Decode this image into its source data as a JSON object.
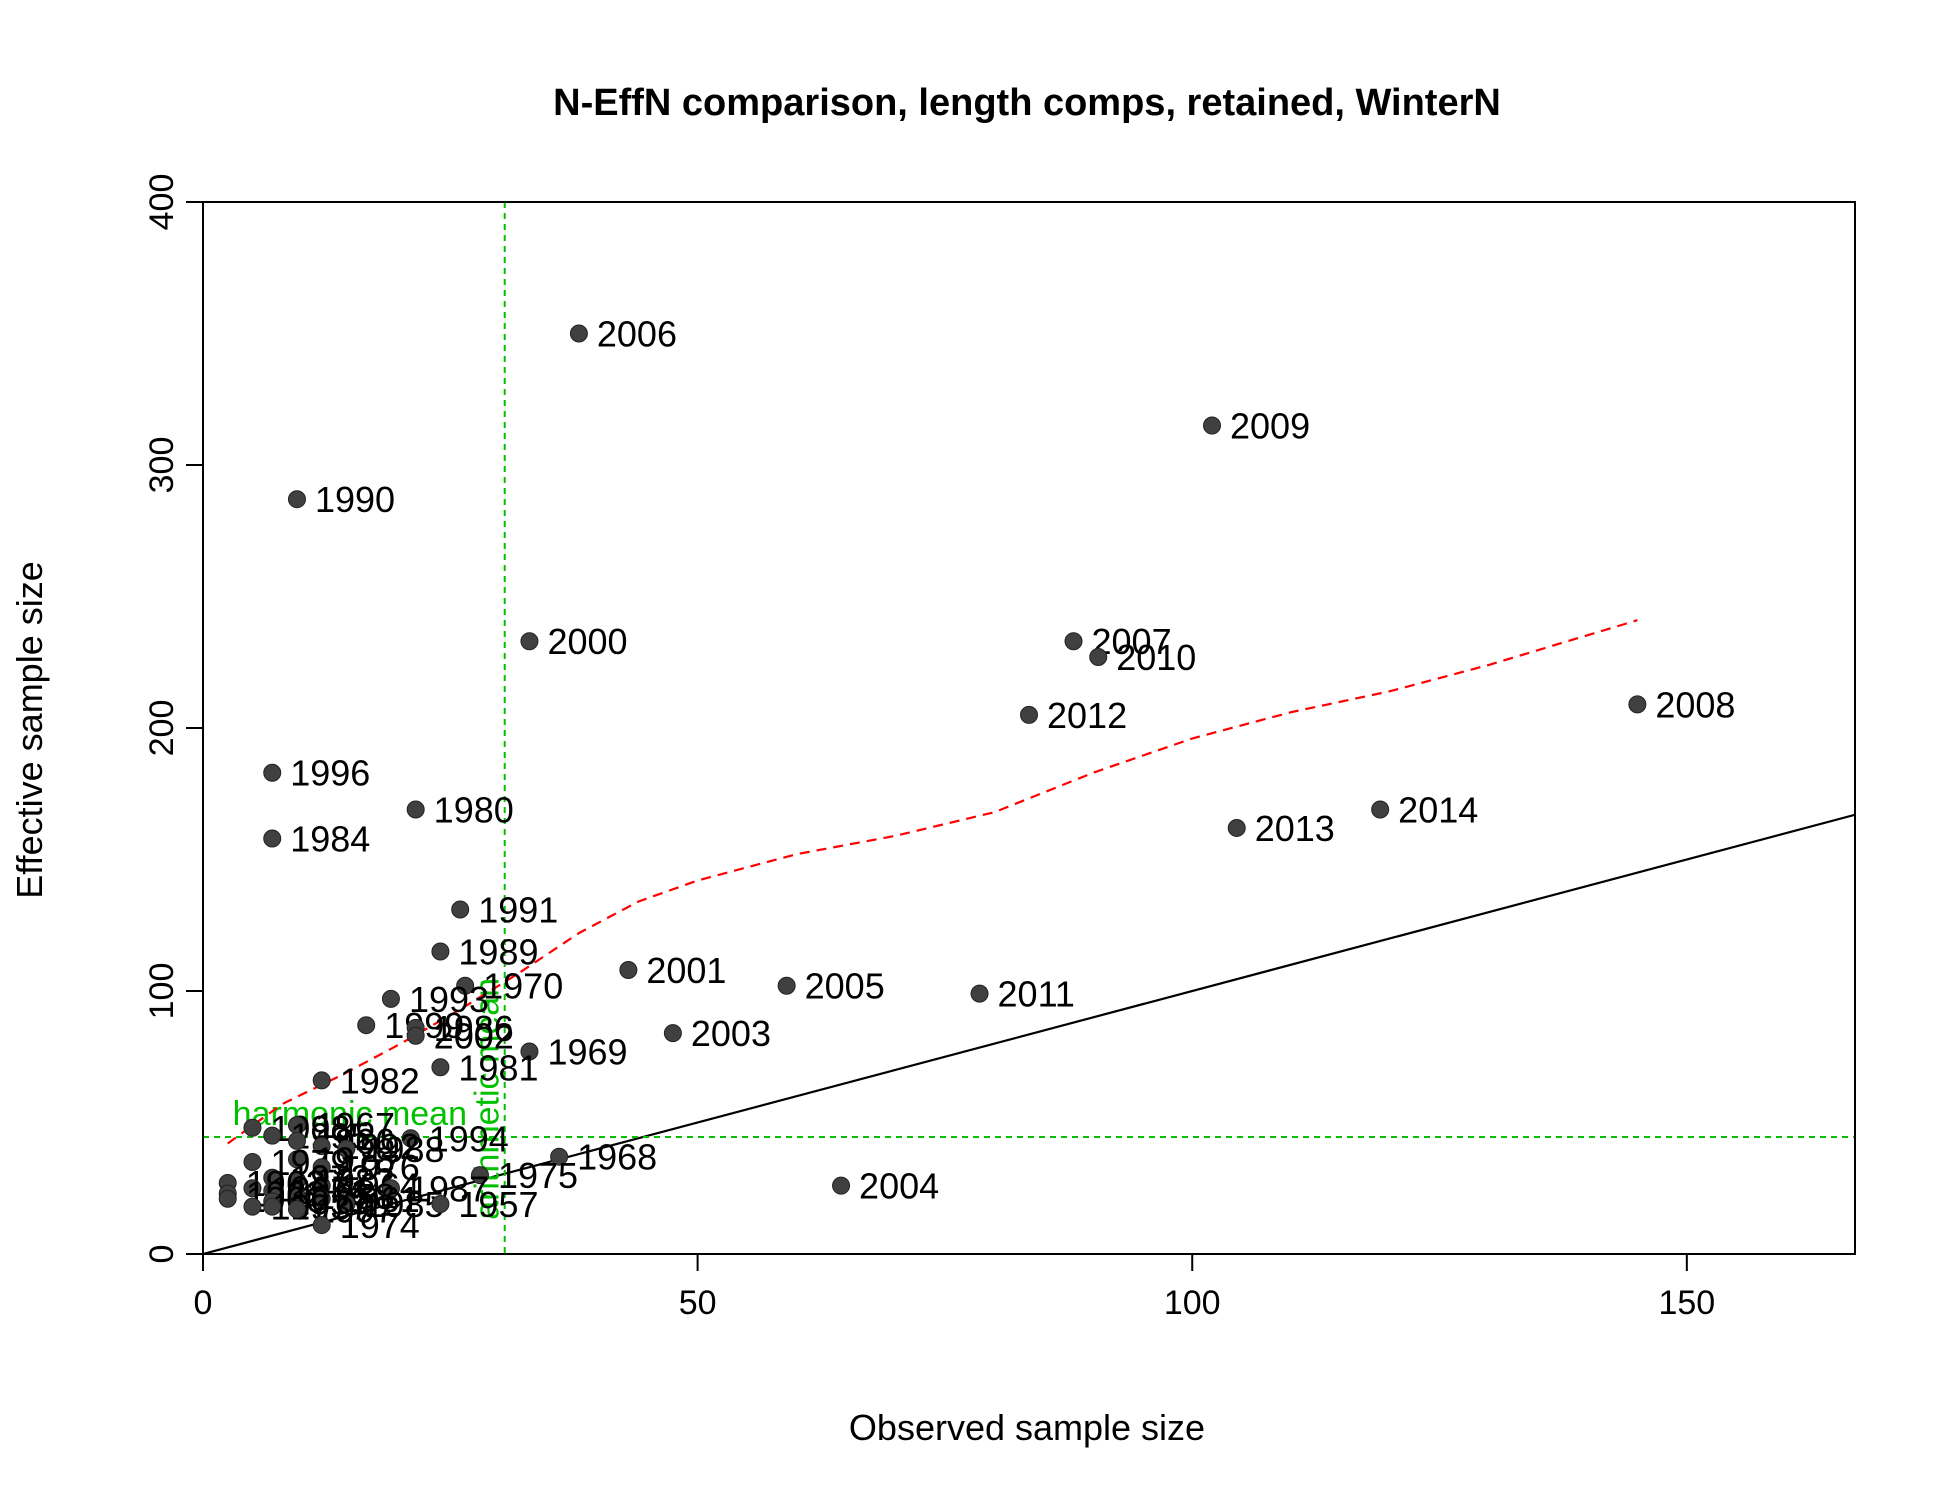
{
  "chart_data": {
    "type": "scatter",
    "title": "N-EffN comparison, length comps, retained, WinterN",
    "xlabel": "Observed sample size",
    "ylabel": "Effective sample size",
    "xlim": [
      0,
      167
    ],
    "ylim": [
      0,
      400
    ],
    "xticks": [
      0,
      50,
      100,
      150
    ],
    "yticks": [
      0,
      100,
      200,
      300,
      400
    ],
    "grid": false,
    "point_color": "#404040",
    "points": [
      {
        "label": "2006",
        "x": 38,
        "y": 350
      },
      {
        "label": "2009",
        "x": 102,
        "y": 315
      },
      {
        "label": "1990",
        "x": 9.5,
        "y": 287
      },
      {
        "label": "2000",
        "x": 33,
        "y": 233
      },
      {
        "label": "2007",
        "x": 88,
        "y": 233
      },
      {
        "label": "2010",
        "x": 90.5,
        "y": 227
      },
      {
        "label": "2008",
        "x": 145,
        "y": 209
      },
      {
        "label": "2012",
        "x": 83.5,
        "y": 205
      },
      {
        "label": "1996",
        "x": 7,
        "y": 183
      },
      {
        "label": "1980",
        "x": 21.5,
        "y": 169
      },
      {
        "label": "2014",
        "x": 119,
        "y": 169
      },
      {
        "label": "2013",
        "x": 104.5,
        "y": 162
      },
      {
        "label": "1984",
        "x": 7,
        "y": 158
      },
      {
        "label": "1991",
        "x": 26,
        "y": 131
      },
      {
        "label": "1989",
        "x": 24,
        "y": 115
      },
      {
        "label": "2001",
        "x": 43,
        "y": 108
      },
      {
        "label": "2005",
        "x": 59,
        "y": 102
      },
      {
        "label": "1970",
        "x": 26.5,
        "y": 102
      },
      {
        "label": "2011",
        "x": 78.5,
        "y": 99
      },
      {
        "label": "1993",
        "x": 19,
        "y": 97
      },
      {
        "label": "1999",
        "x": 16.5,
        "y": 87
      },
      {
        "label": "1986",
        "x": 21.5,
        "y": 86
      },
      {
        "label": "2002",
        "x": 21.5,
        "y": 83
      },
      {
        "label": "2003",
        "x": 47.5,
        "y": 84
      },
      {
        "label": "1969",
        "x": 33,
        "y": 77
      },
      {
        "label": "1981",
        "x": 24,
        "y": 71
      },
      {
        "label": "1982",
        "x": 12,
        "y": 66
      },
      {
        "label": "1998",
        "x": 5,
        "y": 48
      },
      {
        "label": "1967",
        "x": 9.5,
        "y": 49
      },
      {
        "label": "1994",
        "x": 21,
        "y": 44
      },
      {
        "label": "1995",
        "x": 7,
        "y": 45
      },
      {
        "label": "1966",
        "x": 9.5,
        "y": 43
      },
      {
        "label": "1992",
        "x": 12,
        "y": 41
      },
      {
        "label": "1988",
        "x": 14.5,
        "y": 40
      },
      {
        "label": "1968",
        "x": 36,
        "y": 37
      },
      {
        "label": "1978",
        "x": 9.5,
        "y": 36
      },
      {
        "label": "1979",
        "x": 5,
        "y": 35
      },
      {
        "label": "1976",
        "x": 12,
        "y": 33
      },
      {
        "label": "1975",
        "x": 28,
        "y": 30
      },
      {
        "label": "1972",
        "x": 7,
        "y": 29
      },
      {
        "label": "1983",
        "x": 9.5,
        "y": 28
      },
      {
        "label": "1963",
        "x": 2.5,
        "y": 27
      },
      {
        "label": "1964",
        "x": 12,
        "y": 26
      },
      {
        "label": "2004",
        "x": 64.5,
        "y": 26
      },
      {
        "label": "1987",
        "x": 19,
        "y": 25
      },
      {
        "label": "1965",
        "x": 5,
        "y": 25
      },
      {
        "label": "1971",
        "x": 7,
        "y": 24
      },
      {
        "label": "1962",
        "x": 2.5,
        "y": 23
      },
      {
        "label": "1958",
        "x": 9.5,
        "y": 22
      },
      {
        "label": "1960",
        "x": 2.5,
        "y": 21
      },
      {
        "label": "1961",
        "x": 12,
        "y": 21
      },
      {
        "label": "1959",
        "x": 7,
        "y": 20
      },
      {
        "label": "1985",
        "x": 14.5,
        "y": 19
      },
      {
        "label": "1957",
        "x": 24,
        "y": 19
      },
      {
        "label": "1973",
        "x": 5,
        "y": 18
      },
      {
        "label": "1977",
        "x": 7,
        "y": 18
      },
      {
        "label": "1997",
        "x": 9.5,
        "y": 17
      },
      {
        "label": "1974",
        "x": 12,
        "y": 11
      }
    ],
    "reference_lines": {
      "one_to_one": {
        "color": "#000000"
      },
      "harmonic_mean": {
        "label": "harmonic mean",
        "y": 44.5,
        "color": "#00c000"
      },
      "arithmetic_mean": {
        "label": "arithmetic mean",
        "x": 30.5,
        "color": "#00c000"
      }
    },
    "smoother": {
      "color": "#ff0000",
      "x": [
        2.5,
        8,
        14,
        20,
        26,
        32,
        38,
        44,
        50,
        60,
        70,
        80,
        90,
        100,
        110,
        120,
        130,
        145
      ],
      "y": [
        42,
        57,
        68,
        80,
        93,
        107,
        122,
        134,
        142,
        152,
        159,
        168,
        183,
        196,
        206,
        214,
        224,
        241
      ]
    }
  }
}
